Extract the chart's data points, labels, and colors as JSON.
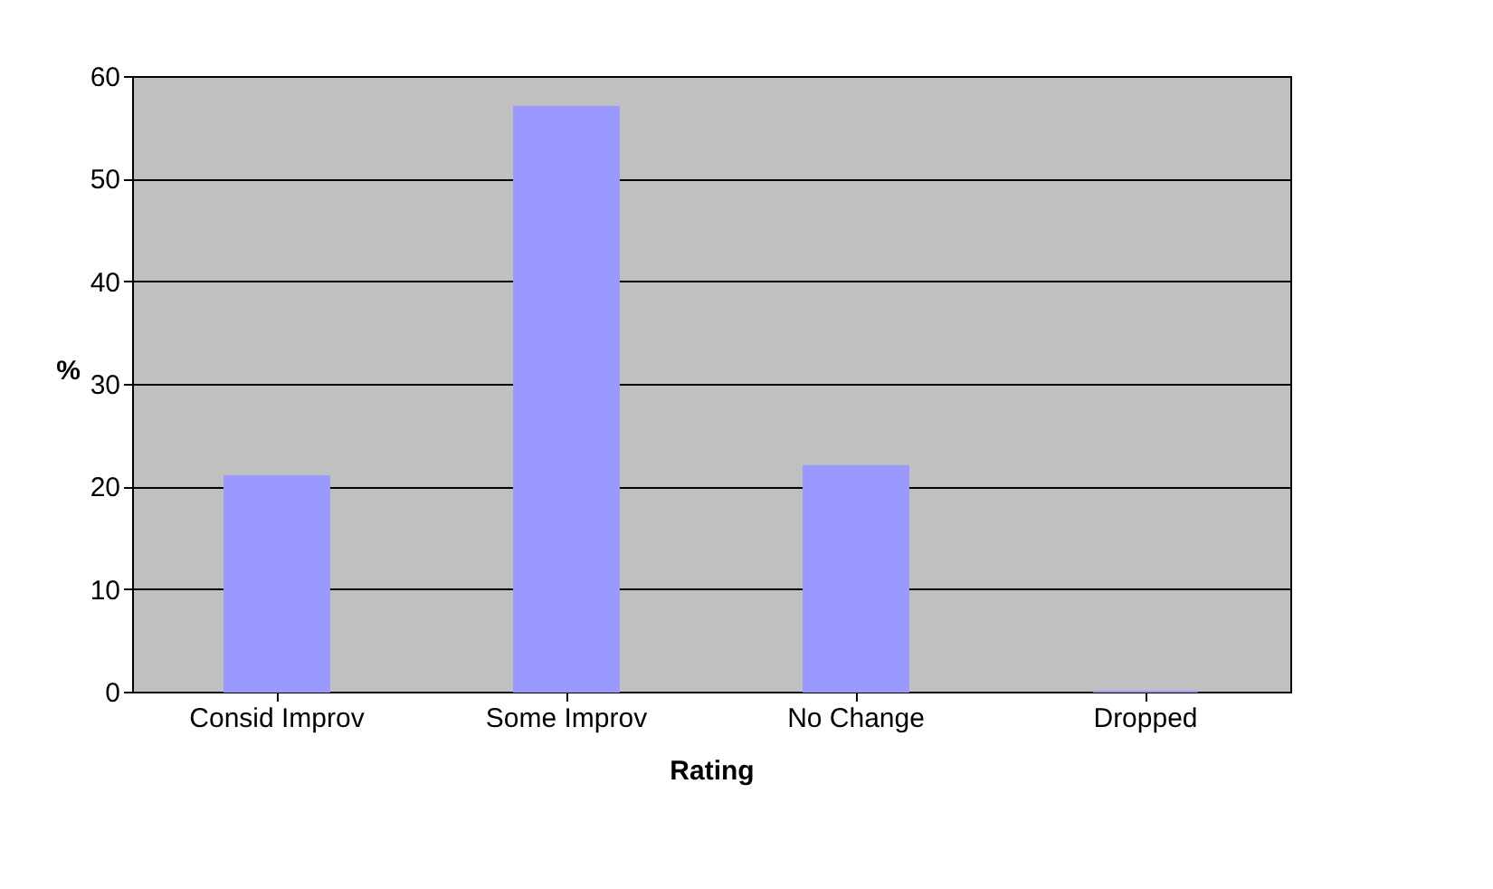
{
  "chart_data": {
    "type": "bar",
    "xlabel": "Rating",
    "ylabel": "%",
    "categories": [
      "Consid Improv",
      "Some Improv",
      "No Change",
      "Dropped"
    ],
    "values": [
      21,
      57,
      22,
      0
    ],
    "color": "#9999ff",
    "ylim": [
      0,
      60
    ],
    "yticks": [
      0,
      10,
      20,
      30,
      40,
      50,
      60
    ],
    "grid": "y"
  }
}
